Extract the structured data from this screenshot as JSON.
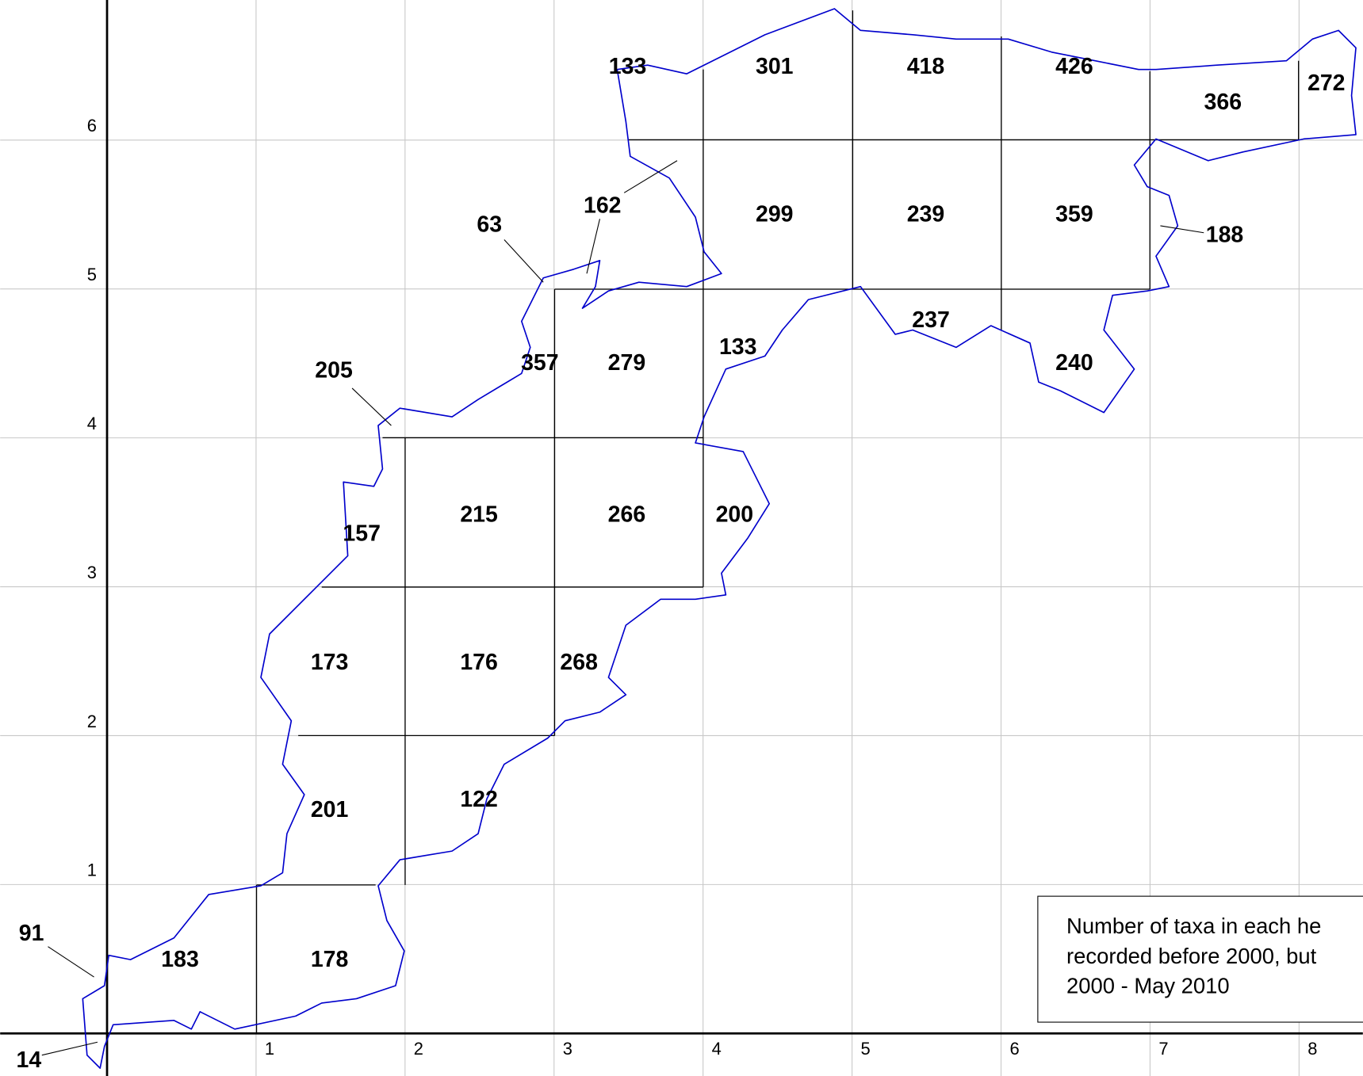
{
  "map": {
    "x_ticks": [
      1,
      2,
      3,
      4,
      5,
      6,
      7,
      8
    ],
    "y_ticks": [
      1,
      2,
      3,
      4,
      5,
      6
    ],
    "cell_counts": [
      133,
      301,
      418,
      426,
      366,
      272,
      162,
      63,
      299,
      239,
      359,
      188,
      205,
      357,
      279,
      133,
      237,
      240,
      215,
      266,
      200,
      157,
      173,
      176,
      268,
      201,
      122,
      91,
      183,
      178,
      14
    ],
    "legend": [
      "Number of taxa in each he",
      "recorded before 2000, but",
      "2000 - May 2010"
    ]
  }
}
